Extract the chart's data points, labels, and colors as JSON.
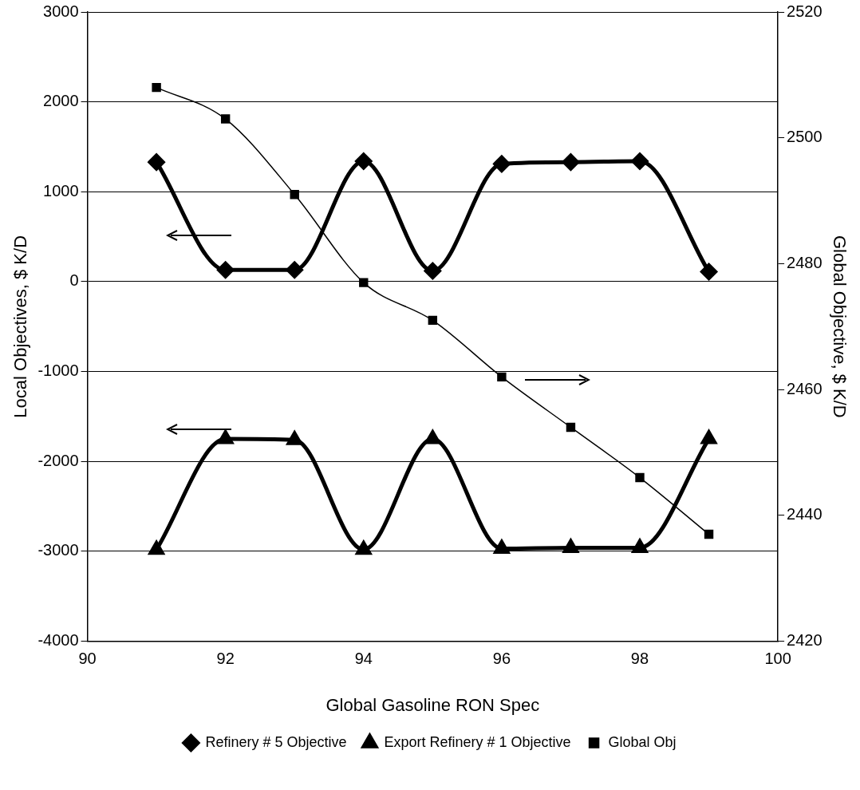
{
  "chart_data": {
    "type": "line",
    "xlabel": "Global Gasoline RON Spec",
    "ylabel": "Local Objectives, $ K/D",
    "y2label": "Global Objective, $ K/D",
    "x": [
      91,
      92,
      93,
      94,
      95,
      96,
      97,
      98,
      99
    ],
    "series": [
      {
        "name": "Refinery # 5 Objective",
        "color": "#000000",
        "marker": "diamond",
        "values": [
          1330,
          130,
          130,
          1340,
          120,
          1310,
          1330,
          1340,
          110
        ]
      },
      {
        "name": "Export Refinery # 1 Objective",
        "color": "#000000",
        "marker": "triangle",
        "values": [
          -2980,
          -1750,
          -1760,
          -2980,
          -1750,
          -2970,
          -2960,
          -2960,
          -1750
        ]
      },
      {
        "name": "Global Obj",
        "color": "#000000",
        "marker": "square",
        "axis": "y2",
        "values": [
          2508,
          2503,
          2491,
          2477,
          2471,
          2462,
          2454,
          2446,
          2437
        ]
      }
    ],
    "xlim": [
      90,
      100
    ],
    "xticks": [
      90,
      92,
      94,
      96,
      98,
      100
    ],
    "ylim": [
      -4000,
      3000
    ],
    "yticks": [
      -4000,
      -3000,
      -2000,
      -1000,
      0,
      1000,
      2000,
      3000
    ],
    "y2lim": [
      2420,
      2520
    ],
    "y2ticks": [
      2420,
      2440,
      2460,
      2480,
      2500,
      2520
    ],
    "grid": "y",
    "legend": "bottom"
  }
}
